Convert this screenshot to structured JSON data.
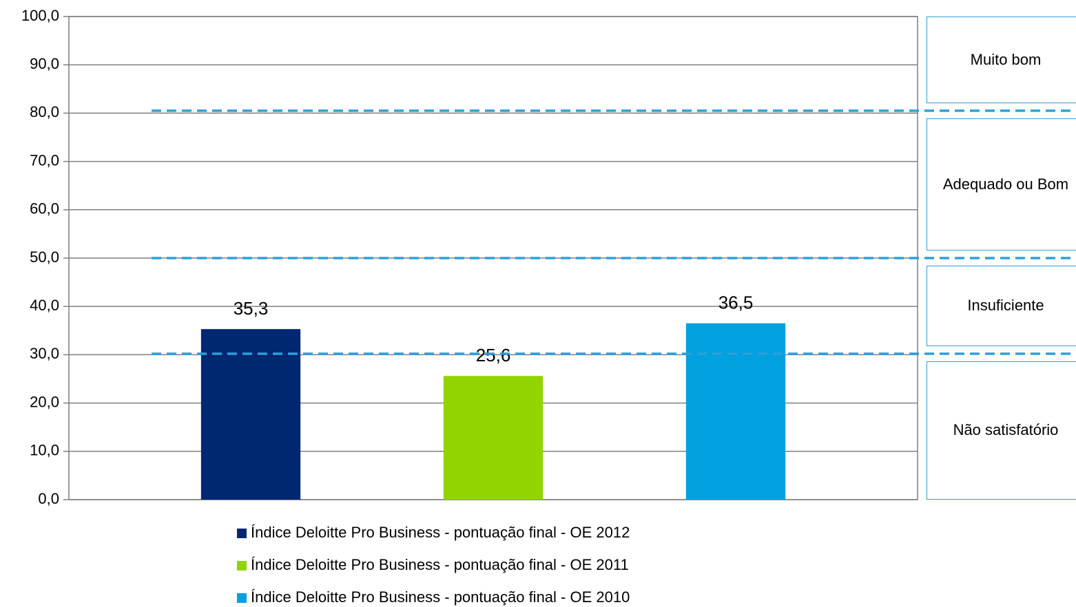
{
  "chart_data": {
    "type": "bar",
    "categories": [
      null
    ],
    "series": [
      {
        "name": "Índice Deloitte Pro Business - pontuação final - OE 2012",
        "color": "#002870",
        "values": [
          35.3
        ],
        "value_labels": [
          "35,3"
        ]
      },
      {
        "name": "Índice Deloitte Pro Business - pontuação final - OE 2011",
        "color": "#92d400",
        "values": [
          25.6
        ],
        "value_labels": [
          "25,6"
        ]
      },
      {
        "name": "Índice Deloitte Pro Business - pontuação final - OE 2010",
        "color": "#00a1de",
        "values": [
          36.5
        ],
        "value_labels": [
          "36,5"
        ]
      }
    ],
    "ylim": [
      0,
      100
    ],
    "yticks": [
      {
        "value": 0,
        "label": "0,0"
      },
      {
        "value": 10,
        "label": "10,0"
      },
      {
        "value": 20,
        "label": "20,0"
      },
      {
        "value": 30,
        "label": "30,0"
      },
      {
        "value": 40,
        "label": "40,0"
      },
      {
        "value": 50,
        "label": "50,0"
      },
      {
        "value": 60,
        "label": "60,0"
      },
      {
        "value": 70,
        "label": "70,0"
      },
      {
        "value": 80,
        "label": "80,0"
      },
      {
        "value": 90,
        "label": "90,0"
      },
      {
        "value": 100,
        "label": "100,0"
      }
    ],
    "grid": true,
    "reference_lines": [
      80.5,
      50,
      30.2
    ],
    "reference_color": "#2e9fd9",
    "bands": [
      "Muito bom",
      "Adequado ou Bom",
      "Insuficiente",
      "Não satisfatório"
    ],
    "legend": "bottom"
  }
}
